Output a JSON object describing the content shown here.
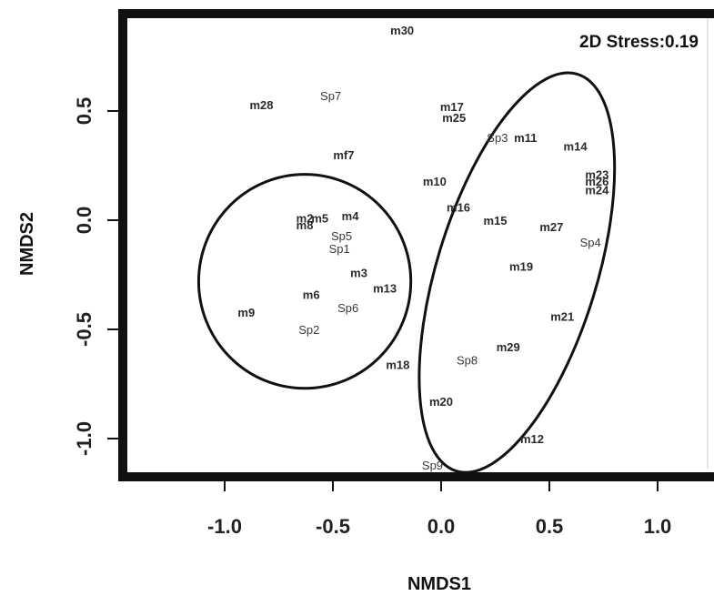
{
  "chart_data": {
    "type": "scatter",
    "xlabel": "NMDS1",
    "ylabel": "NMDS2",
    "xlim": [
      -1.45,
      1.25
    ],
    "ylim": [
      -1.2,
      0.95
    ],
    "xticks": [
      -1.0,
      -0.5,
      0.0,
      0.5,
      1.0
    ],
    "xtick_labels": [
      "-1.0",
      "-0.5",
      "0.0",
      "0.5",
      "1.0"
    ],
    "yticks": [
      0.5,
      0.0,
      -0.5,
      -1.0
    ],
    "ytick_labels": [
      "0.5",
      "0.0",
      "-0.5",
      "-1.0"
    ],
    "annotation": "2D Stress:0.19",
    "points": [
      {
        "label": "m30",
        "x": -0.18,
        "y": 0.87
      },
      {
        "label": "m28",
        "x": -0.83,
        "y": 0.53
      },
      {
        "label": "Sp7",
        "x": -0.51,
        "y": 0.57
      },
      {
        "label": "m17",
        "x": 0.05,
        "y": 0.52
      },
      {
        "label": "m25",
        "x": 0.06,
        "y": 0.47
      },
      {
        "label": "Sp3",
        "x": 0.26,
        "y": 0.38
      },
      {
        "label": "m11",
        "x": 0.39,
        "y": 0.38
      },
      {
        "label": "m14",
        "x": 0.62,
        "y": 0.34
      },
      {
        "label": "mf7",
        "x": -0.45,
        "y": 0.3
      },
      {
        "label": "m23",
        "x": 0.72,
        "y": 0.21
      },
      {
        "label": "m26",
        "x": 0.72,
        "y": 0.18
      },
      {
        "label": "m24",
        "x": 0.72,
        "y": 0.14
      },
      {
        "label": "m10",
        "x": -0.03,
        "y": 0.18
      },
      {
        "label": "m16",
        "x": 0.08,
        "y": 0.06
      },
      {
        "label": "m2",
        "x": -0.63,
        "y": 0.01
      },
      {
        "label": "m5",
        "x": -0.56,
        "y": 0.01
      },
      {
        "label": "m8",
        "x": -0.63,
        "y": -0.02
      },
      {
        "label": "m4",
        "x": -0.42,
        "y": 0.02
      },
      {
        "label": "m15",
        "x": 0.25,
        "y": 0.0
      },
      {
        "label": "m27",
        "x": 0.51,
        "y": -0.03
      },
      {
        "label": "Sp5",
        "x": -0.46,
        "y": -0.07
      },
      {
        "label": "Sp1",
        "x": -0.47,
        "y": -0.13
      },
      {
        "label": "Sp4",
        "x": 0.69,
        "y": -0.1
      },
      {
        "label": "m19",
        "x": 0.37,
        "y": -0.21
      },
      {
        "label": "m3",
        "x": -0.38,
        "y": -0.24
      },
      {
        "label": "m13",
        "x": -0.26,
        "y": -0.31
      },
      {
        "label": "m6",
        "x": -0.6,
        "y": -0.34
      },
      {
        "label": "Sp6",
        "x": -0.43,
        "y": -0.4
      },
      {
        "label": "m9",
        "x": -0.9,
        "y": -0.42
      },
      {
        "label": "m21",
        "x": 0.56,
        "y": -0.44
      },
      {
        "label": "Sp2",
        "x": -0.61,
        "y": -0.5
      },
      {
        "label": "m29",
        "x": 0.31,
        "y": -0.58
      },
      {
        "label": "m18",
        "x": -0.2,
        "y": -0.66
      },
      {
        "label": "Sp8",
        "x": 0.12,
        "y": -0.64
      },
      {
        "label": "m20",
        "x": 0.0,
        "y": -0.83
      },
      {
        "label": "m12",
        "x": 0.42,
        "y": -1.0
      },
      {
        "label": "Sp9",
        "x": -0.04,
        "y": -1.12
      }
    ],
    "ellipses": [
      {
        "cx": -0.63,
        "cy": -0.28,
        "rx": 0.49,
        "ry": 0.49,
        "angle": 0
      },
      {
        "cx": 0.35,
        "cy": -0.24,
        "rx": 0.37,
        "ry": 0.95,
        "angle": 17
      }
    ]
  }
}
